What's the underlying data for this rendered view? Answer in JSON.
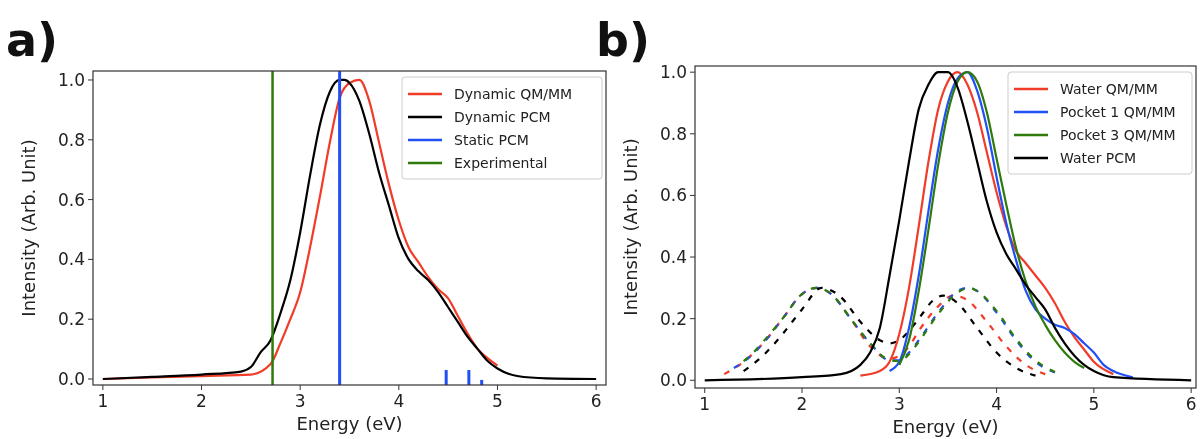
{
  "chart_data": [
    {
      "type": "line",
      "title": "a)",
      "xlabel": "Energy (eV)",
      "ylabel": "Intensity (Arb. Unit)",
      "xlim": [
        0.9,
        6.1
      ],
      "ylim": [
        -0.02,
        1.03
      ],
      "xticks": [
        1,
        2,
        3,
        4,
        5,
        6
      ],
      "yticks": [
        {
          "value": 0,
          "label": "0.0"
        },
        {
          "value": 0.2,
          "label": "0.2"
        },
        {
          "value": 0.4,
          "label": "0.4"
        },
        {
          "value": 0.6,
          "label": "0.6"
        },
        {
          "value": 0.8,
          "label": "0.8"
        },
        {
          "value": 1,
          "label": "1.0"
        }
      ],
      "legend": "top right",
      "grid": false,
      "series": [
        {
          "name": "Dynamic QM/MM",
          "color": "#f03c28",
          "x": [
            1,
            1.5,
            2,
            2.5,
            2.7,
            2.8,
            2.9,
            3,
            3.1,
            3.2,
            3.3,
            3.4,
            3.5,
            3.6,
            3.7,
            3.8,
            3.9,
            4,
            4.1,
            4.2,
            4.3,
            4.4,
            4.5,
            4.6,
            4.7,
            4.8,
            4.9,
            5
          ],
          "values": [
            0,
            0.005,
            0.01,
            0.015,
            0.05,
            0.12,
            0.2,
            0.29,
            0.44,
            0.61,
            0.79,
            0.94,
            0.99,
            1,
            0.93,
            0.79,
            0.65,
            0.53,
            0.44,
            0.39,
            0.34,
            0.3,
            0.27,
            0.21,
            0.15,
            0.1,
            0.07,
            0.045
          ]
        },
        {
          "name": "Dynamic PCM",
          "color": "#000000",
          "x": [
            1,
            1.5,
            2,
            2.4,
            2.5,
            2.6,
            2.7,
            2.8,
            2.9,
            3,
            3.1,
            3.2,
            3.3,
            3.4,
            3.45,
            3.5,
            3.6,
            3.7,
            3.8,
            3.9,
            4,
            4.1,
            4.2,
            4.3,
            4.4,
            4.5,
            4.6,
            4.7,
            4.8,
            4.9,
            5,
            5.2,
            5.5,
            6
          ],
          "values": [
            0,
            0.007,
            0.015,
            0.025,
            0.04,
            0.09,
            0.13,
            0.22,
            0.33,
            0.49,
            0.68,
            0.85,
            0.96,
            1,
            1,
            0.99,
            0.93,
            0.82,
            0.69,
            0.58,
            0.47,
            0.4,
            0.36,
            0.33,
            0.29,
            0.24,
            0.19,
            0.14,
            0.1,
            0.06,
            0.035,
            0.01,
            0.002,
            0
          ]
        },
        {
          "name": "Static PCM",
          "type": "bar",
          "color": "#1f4ff5",
          "x": [
            3.4,
            4.48,
            4.71,
            4.84
          ],
          "base": [
            -0.02,
            -0.02,
            -0.02,
            -0.02
          ],
          "values": [
            1.05,
            0.05,
            0.05,
            0.017
          ]
        },
        {
          "name": "Experimental",
          "color": "#2e7a0a",
          "x": [
            2.72,
            2.72
          ],
          "values": [
            -0.02,
            1.03
          ]
        }
      ]
    },
    {
      "type": "line",
      "title": "b)",
      "xlabel": "Energy (eV)",
      "ylabel": "Intensity (Arb. Unit)",
      "xlim": [
        0.9,
        6.05
      ],
      "ylim": [
        -0.025,
        1.02
      ],
      "xticks": [
        1,
        2,
        3,
        4,
        5,
        6
      ],
      "yticks": [
        {
          "value": 0,
          "label": "0.0"
        },
        {
          "value": 0.2,
          "label": "0.2"
        },
        {
          "value": 0.4,
          "label": "0.4"
        },
        {
          "value": 0.6,
          "label": "0.6"
        },
        {
          "value": 0.8,
          "label": "0.8"
        },
        {
          "value": 1,
          "label": "1.0"
        }
      ],
      "legend": "top right",
      "grid": false,
      "series": [
        {
          "color": "#f03c28",
          "line_style": "dashed",
          "x": [
            1.2,
            1.4,
            1.6,
            1.8,
            2,
            2.15,
            2.3,
            2.5,
            2.7,
            2.9,
            3,
            3.1,
            3.2,
            3.4,
            3.55,
            3.7,
            3.9,
            4.1,
            4.3,
            4.5
          ],
          "values": [
            0.02,
            0.06,
            0.12,
            0.2,
            0.28,
            0.3,
            0.28,
            0.2,
            0.11,
            0.07,
            0.08,
            0.11,
            0.16,
            0.24,
            0.275,
            0.26,
            0.19,
            0.11,
            0.05,
            0.02
          ]
        },
        {
          "color": "#1f4ff5",
          "line_style": "dashed",
          "x": [
            1.3,
            1.4,
            1.6,
            1.8,
            2,
            2.15,
            2.3,
            2.5,
            2.7,
            2.9,
            3,
            3.1,
            3.2,
            3.4,
            3.6,
            3.7,
            3.8,
            4,
            4.2,
            4.4,
            4.6
          ],
          "values": [
            0.04,
            0.06,
            0.12,
            0.2,
            0.28,
            0.3,
            0.28,
            0.2,
            0.12,
            0.065,
            0.065,
            0.09,
            0.13,
            0.22,
            0.29,
            0.3,
            0.29,
            0.22,
            0.13,
            0.06,
            0.025
          ]
        },
        {
          "color": "#2e7a0a",
          "line_style": "dashed",
          "x": [
            1.4,
            1.5,
            1.6,
            1.8,
            2,
            2.15,
            2.3,
            2.5,
            2.7,
            2.9,
            3,
            3.1,
            3.2,
            3.4,
            3.6,
            3.72,
            3.8,
            4,
            4.2,
            4.4,
            4.6
          ],
          "values": [
            0.062,
            0.09,
            0.125,
            0.2,
            0.28,
            0.3,
            0.28,
            0.2,
            0.12,
            0.065,
            0.062,
            0.085,
            0.125,
            0.215,
            0.285,
            0.3,
            0.29,
            0.225,
            0.135,
            0.065,
            0.027
          ]
        },
        {
          "color": "#000000",
          "line_style": "dashed",
          "x": [
            1.4,
            1.6,
            1.8,
            2,
            2.2,
            2.4,
            2.6,
            2.8,
            2.9,
            3,
            3.1,
            3.2,
            3.35,
            3.45,
            3.6,
            3.8,
            4,
            4.2,
            4.4
          ],
          "values": [
            0.03,
            0.08,
            0.15,
            0.23,
            0.3,
            0.27,
            0.19,
            0.13,
            0.12,
            0.13,
            0.16,
            0.2,
            0.26,
            0.275,
            0.25,
            0.17,
            0.09,
            0.04,
            0.015
          ]
        },
        {
          "name": "Water QM/MM",
          "color": "#f03c28",
          "x": [
            2.6,
            2.8,
            2.9,
            3,
            3.1,
            3.2,
            3.3,
            3.4,
            3.5,
            3.6,
            3.7,
            3.8,
            3.9,
            4,
            4.1,
            4.2,
            4.3,
            4.4,
            4.5,
            4.6,
            4.7,
            4.8,
            4.9,
            5,
            5.2
          ],
          "values": [
            0.015,
            0.03,
            0.06,
            0.15,
            0.3,
            0.5,
            0.71,
            0.88,
            0.97,
            1,
            0.96,
            0.87,
            0.74,
            0.61,
            0.5,
            0.42,
            0.38,
            0.34,
            0.3,
            0.25,
            0.19,
            0.14,
            0.1,
            0.06,
            0.02
          ]
        },
        {
          "name": "Pocket 1 QM/MM",
          "color": "#1f4ff5",
          "x": [
            2.9,
            3,
            3.1,
            3.2,
            3.3,
            3.4,
            3.5,
            3.6,
            3.7,
            3.8,
            3.9,
            4,
            4.1,
            4.2,
            4.3,
            4.4,
            4.5,
            4.6,
            4.7,
            4.8,
            4.9,
            5,
            5.1,
            5.2,
            5.4
          ],
          "values": [
            0.03,
            0.06,
            0.17,
            0.34,
            0.55,
            0.75,
            0.9,
            0.98,
            1,
            0.94,
            0.82,
            0.66,
            0.51,
            0.39,
            0.29,
            0.23,
            0.2,
            0.18,
            0.17,
            0.15,
            0.12,
            0.09,
            0.05,
            0.03,
            0.01
          ]
        },
        {
          "name": "Pocket 3 QM/MM",
          "color": "#2e7a0a",
          "x": [
            3,
            3.1,
            3.2,
            3.3,
            3.4,
            3.5,
            3.6,
            3.7,
            3.8,
            3.9,
            4,
            4.1,
            4.2,
            4.3,
            4.4,
            4.5,
            4.6,
            4.7,
            4.8,
            4.9
          ],
          "values": [
            0.05,
            0.13,
            0.29,
            0.49,
            0.7,
            0.87,
            0.97,
            1,
            0.97,
            0.87,
            0.72,
            0.57,
            0.43,
            0.32,
            0.24,
            0.18,
            0.13,
            0.09,
            0.06,
            0.04
          ]
        },
        {
          "name": "Water PCM",
          "color": "#000000",
          "x": [
            1,
            2,
            2.4,
            2.6,
            2.7,
            2.8,
            2.9,
            3,
            3.1,
            3.2,
            3.3,
            3.4,
            3.5,
            3.6,
            3.7,
            3.8,
            3.9,
            4,
            4.1,
            4.2,
            4.3,
            4.4,
            4.5,
            4.6,
            4.7,
            4.8,
            4.9,
            5,
            5.2,
            6
          ],
          "values": [
            0,
            0.01,
            0.02,
            0.05,
            0.09,
            0.17,
            0.34,
            0.52,
            0.71,
            0.88,
            0.96,
            1,
            1,
            0.95,
            0.84,
            0.71,
            0.58,
            0.48,
            0.41,
            0.36,
            0.31,
            0.27,
            0.23,
            0.17,
            0.12,
            0.08,
            0.05,
            0.03,
            0.01,
            0
          ]
        }
      ]
    }
  ]
}
